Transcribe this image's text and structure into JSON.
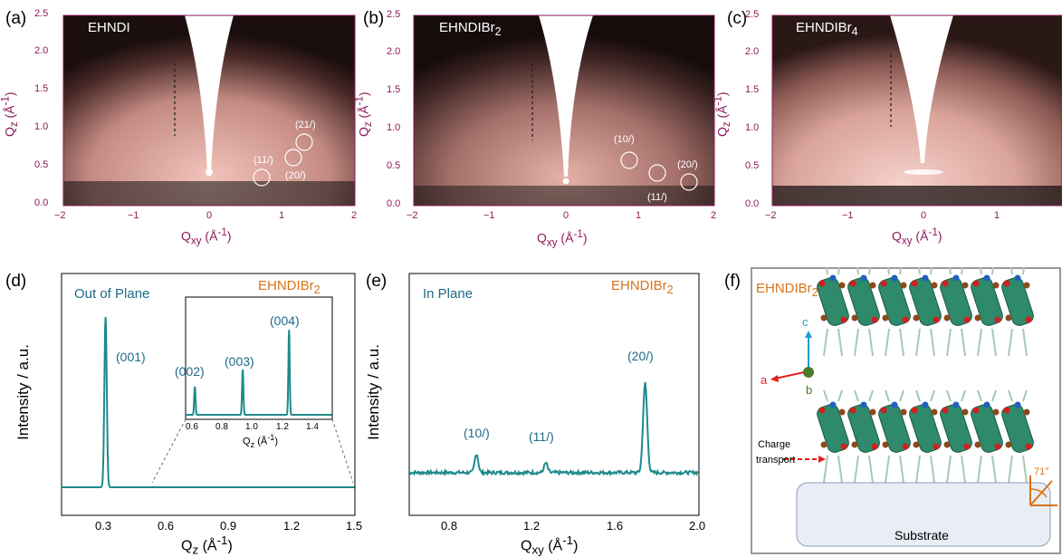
{
  "panels": {
    "a": {
      "label": "(a)",
      "name": "EHNDI",
      "peaks": [
        "(21/)",
        "(11/)",
        "(20/)"
      ]
    },
    "b": {
      "label": "(b)",
      "name": "EHNDIBr",
      "name_sub": "2",
      "peaks": [
        "(10/)",
        "(20/)",
        "(11/)"
      ]
    },
    "c": {
      "label": "(c)",
      "name": "EHNDIBr",
      "name_sub": "4"
    },
    "d": {
      "label": "(d)",
      "title": "Out of Plane",
      "material": "EHNDIBr",
      "material_sub": "2",
      "ylabel": "Intensity / a.u.",
      "xlabel": "Q",
      "xlabel_sub": "z",
      "xlabel_unit": " (Å",
      "xlabel_exp": "-1",
      "xlabel_close": ")",
      "main_peak": "(001)",
      "inset_peaks": [
        "(002)",
        "(003)",
        "(004)"
      ],
      "inset_xticks": [
        "0.6",
        "0.8",
        "1.0",
        "1.2",
        "1.4"
      ]
    },
    "e": {
      "label": "(e)",
      "title": "In Plane",
      "material": "EHNDIBr",
      "material_sub": "2",
      "ylabel": "Intensity / a.u.",
      "xlabel": "Q",
      "xlabel_sub": "xy",
      "xlabel_unit": " (Å",
      "xlabel_exp": "-1",
      "xlabel_close": ")",
      "peaks": [
        "(10/)",
        "(11/)",
        "(20/)"
      ]
    },
    "f": {
      "label": "(f)",
      "material": "EHNDIBr",
      "material_sub": "2",
      "axis_c": "c",
      "axis_a": "a",
      "axis_b": "b",
      "charge_label_1": "Charge",
      "charge_label_2": "transport",
      "angle": "71°",
      "substrate": "Substrate"
    }
  },
  "giwaxs_axes": {
    "qz_label": "Q",
    "qz_sub": "z",
    "qz_unit": " (Å",
    "qz_exp": "-1",
    "qz_close": ")",
    "qxy_label": "Q",
    "qxy_sub": "xy",
    "qxy_unit": " (Å",
    "qxy_exp": "-1",
    "qxy_close": ")",
    "yticks": [
      "0.0",
      "0.5",
      "1.0",
      "1.5",
      "2.0",
      "2.5"
    ],
    "xticks_ab": [
      "−2",
      "−1",
      "0",
      "1",
      "2"
    ],
    "xticks_c": [
      "−2",
      "−1",
      "0",
      "1"
    ]
  },
  "chart_data": [
    {
      "type": "line",
      "title": "Out of Plane",
      "xlabel": "Qz (Å-1)",
      "ylabel": "Intensity / a.u.",
      "xlim": [
        0.1,
        1.5
      ],
      "xticks": [
        "0.3",
        "0.6",
        "0.9",
        "1.2",
        "1.5"
      ],
      "series": [
        {
          "x": [
            0.1,
            0.28,
            0.3,
            0.31,
            0.32,
            0.34,
            0.5,
            1.5
          ],
          "values": [
            0.0,
            0.02,
            0.6,
            1.0,
            0.6,
            0.02,
            0.0,
            0.0
          ]
        }
      ],
      "inset": {
        "xlim": [
          0.55,
          1.5
        ],
        "peaks_x": [
          0.61,
          0.92,
          1.22
        ],
        "peaks_y": [
          0.25,
          0.4,
          0.75
        ]
      }
    },
    {
      "type": "line",
      "title": "In Plane",
      "xlabel": "Qxy (Å-1)",
      "ylabel": "Intensity / a.u.",
      "xlim": [
        0.6,
        2.0
      ],
      "xticks": [
        "0.8",
        "1.2",
        "1.6",
        "2.0"
      ],
      "series": [
        {
          "x": [
            0.6,
            0.92,
            1.26,
            1.74,
            2.0
          ],
          "values": [
            0.05,
            0.22,
            0.13,
            1.0,
            0.05
          ]
        }
      ]
    }
  ],
  "colors": {
    "axis": "#8b1a5a",
    "teal": "#1e8a8a",
    "blue": "#1e6a8a",
    "orange": "#d9741a",
    "bg": "#efb6ac"
  }
}
